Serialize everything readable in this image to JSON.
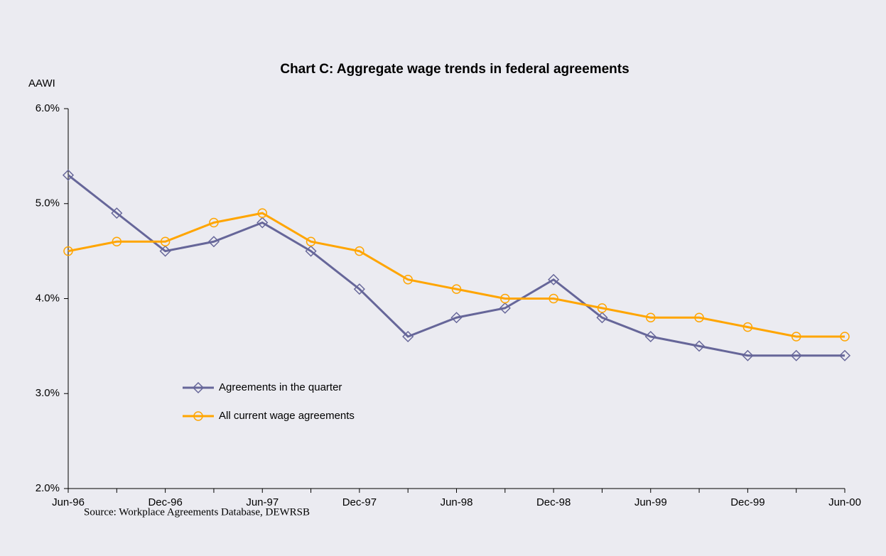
{
  "chart_data": {
    "type": "line",
    "title": "Chart C: Aggregate wage trends in federal agreements",
    "y_label": "AAWI",
    "source": "Source: Workplace Agreements Database, DEWRSB",
    "categories": [
      "Jun-96",
      null,
      "Dec-96",
      null,
      "Jun-97",
      null,
      "Dec-97",
      null,
      "Jun-98",
      null,
      "Dec-98",
      null,
      "Jun-99",
      null,
      "Dec-99",
      null,
      "Jun-00"
    ],
    "series": [
      {
        "name": "Agreements in the quarter",
        "color": "#666699",
        "marker": "diamond",
        "values": [
          5.3,
          4.9,
          4.5,
          4.6,
          4.8,
          4.5,
          4.1,
          3.6,
          3.8,
          3.9,
          4.2,
          3.8,
          3.6,
          3.5,
          3.4,
          3.4,
          3.4
        ]
      },
      {
        "name": "All current wage agreements",
        "color": "#ffa500",
        "marker": "circle",
        "values": [
          4.5,
          4.6,
          4.6,
          4.8,
          4.9,
          4.6,
          4.5,
          4.2,
          4.1,
          4.0,
          4.0,
          3.9,
          3.8,
          3.8,
          3.7,
          3.6,
          3.6
        ]
      }
    ],
    "ylim": [
      2,
      6
    ],
    "yticks": [
      {
        "value": 2,
        "label": "2.0%"
      },
      {
        "value": 3,
        "label": "3.0%"
      },
      {
        "value": 4,
        "label": "4.0%"
      },
      {
        "value": 5,
        "label": "5.0%"
      },
      {
        "value": 6,
        "label": "6.0%"
      }
    ],
    "grid": false
  }
}
